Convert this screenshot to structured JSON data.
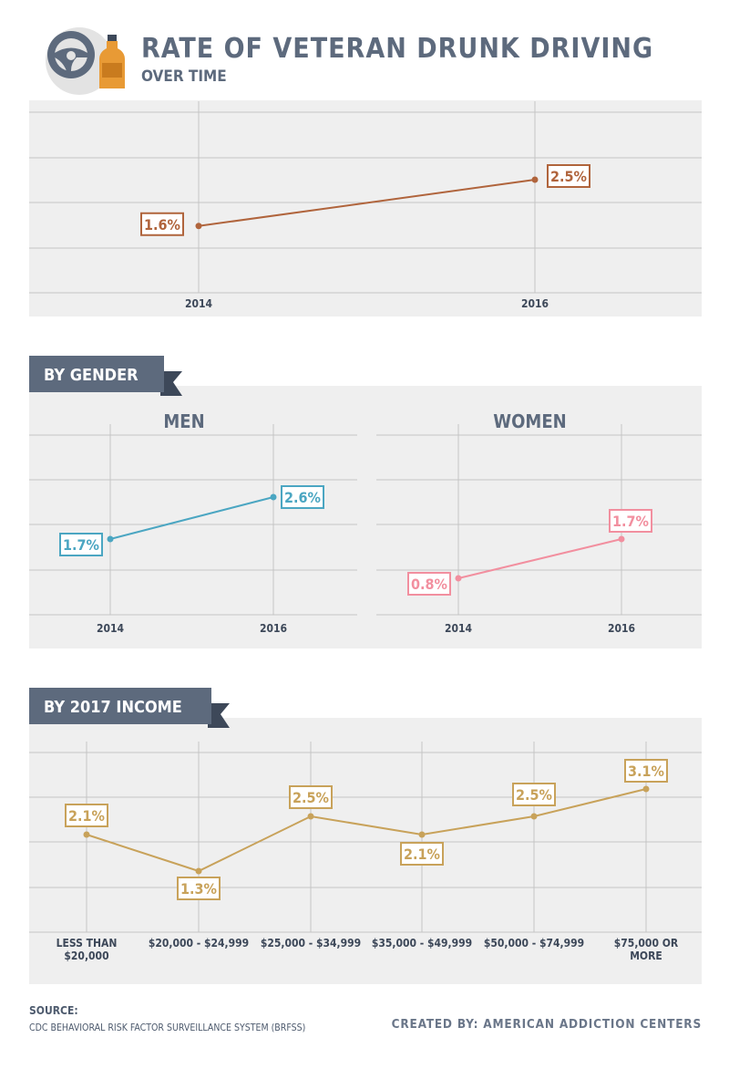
{
  "header": {
    "title": "RATE OF VETERAN DRUNK DRIVING",
    "subtitle": "OVER TIME",
    "icons": [
      "steering-wheel-icon",
      "bottle-icon"
    ]
  },
  "sections": {
    "gender_banner": "BY GENDER",
    "income_banner": "BY 2017 INCOME"
  },
  "colors": {
    "overall": "#b0643c",
    "men": "#4ba6c2",
    "women": "#f28f9f",
    "income": "#c8a25a",
    "banner": "#5d6a7d",
    "banner_fold": "#3d4859"
  },
  "chart_data": [
    {
      "type": "line",
      "id": "overall",
      "title": "",
      "x": [
        "2014",
        "2016"
      ],
      "series": [
        {
          "values": [
            1.6,
            2.5
          ],
          "labels": [
            "1.6%",
            "2.5%"
          ]
        }
      ],
      "grid": true
    },
    {
      "type": "line",
      "id": "men",
      "title": "MEN",
      "x": [
        "2014",
        "2016"
      ],
      "series": [
        {
          "values": [
            1.7,
            2.6
          ],
          "labels": [
            "1.7%",
            "2.6%"
          ]
        }
      ],
      "grid": true
    },
    {
      "type": "line",
      "id": "women",
      "title": "WOMEN",
      "x": [
        "2014",
        "2016"
      ],
      "series": [
        {
          "values": [
            0.8,
            1.7
          ],
          "labels": [
            "0.8%",
            "1.7%"
          ]
        }
      ],
      "grid": true
    },
    {
      "type": "line",
      "id": "income",
      "title": "",
      "x": [
        [
          "LESS THAN",
          "$20,000"
        ],
        [
          "$20,000 - $24,999"
        ],
        [
          "$25,000 - $34,999"
        ],
        [
          "$35,000 - $49,999"
        ],
        [
          "$50,000 - $74,999"
        ],
        [
          "$75,000 OR",
          "MORE"
        ]
      ],
      "series": [
        {
          "values": [
            2.1,
            1.3,
            2.5,
            2.1,
            2.5,
            3.1
          ],
          "labels": [
            "2.1%",
            "1.3%",
            "2.5%",
            "2.1%",
            "2.5%",
            "3.1%"
          ]
        }
      ],
      "grid": true
    }
  ],
  "footer": {
    "source_label": "SOURCE:",
    "source_text": "CDC BEHAVIORAL RISK FACTOR SURVEILLANCE SYSTEM (BRFSS)",
    "credit": "CREATED BY: AMERICAN ADDICTION CENTERS"
  }
}
